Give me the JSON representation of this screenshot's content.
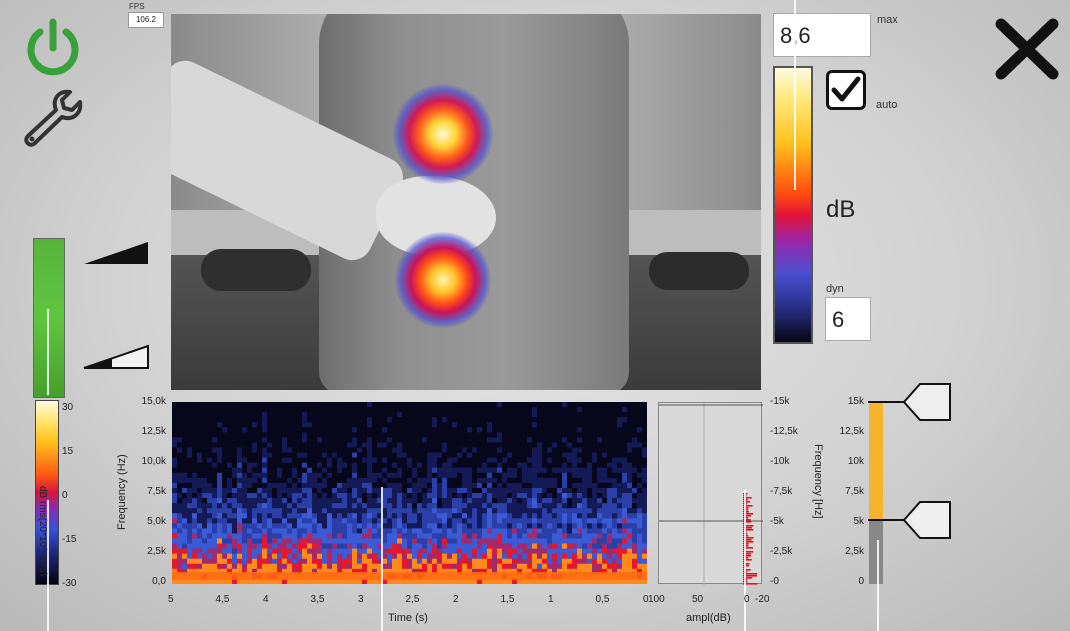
{
  "fps": {
    "label": "FPS",
    "value": "106.2"
  },
  "color_scale": {
    "max_label": "max",
    "max_value": "8,6",
    "auto_label": "auto",
    "auto_checked": true,
    "unit_label": "dB",
    "dyn_label": "dyn",
    "dyn_value": "6"
  },
  "level_meter": {
    "level_fraction": 0.55
  },
  "left_colorbar": {
    "axis_label": "dB rms(20*10^-5Pa)",
    "ticks": [
      "30",
      "15",
      "0",
      "-15",
      "-30"
    ]
  },
  "spectrogram": {
    "ylabel": "Frequency (Hz)",
    "yticks": [
      "15,0k",
      "12,5k",
      "10,0k",
      "7,5k",
      "5,0k",
      "2,5k",
      "0,0"
    ],
    "xlabel": "Time (s)",
    "xticks": [
      "5",
      "4,5",
      "4",
      "3,5",
      "3",
      "2,5",
      "2",
      "1,5",
      "1",
      "0,5",
      "0"
    ],
    "cursor_time": 2.8
  },
  "amplitude": {
    "xlabel": "ampl(dB)",
    "xticks": [
      "100",
      "50",
      "0",
      "-20"
    ],
    "ylabel": "Frequency [Hz]",
    "yticks": [
      "-15k",
      "-12,5k",
      "-10k",
      "-7,5k",
      "-5k",
      "-2,5k",
      "-0"
    ]
  },
  "freq_range": {
    "ticks": [
      "15k",
      "12,5k",
      "10k",
      "7,5k",
      "5k",
      "2,5k",
      "0"
    ],
    "upper": 15000,
    "lower": 5300,
    "max": 15000
  }
}
